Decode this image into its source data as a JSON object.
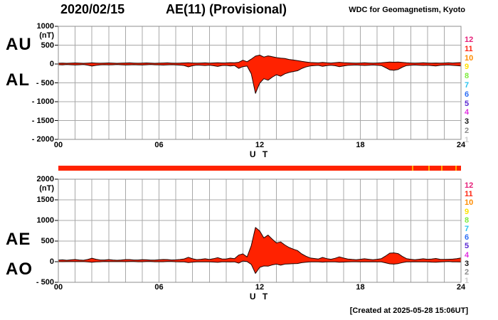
{
  "header": {
    "date": "2020/02/15",
    "title": "AE(11) (Provisional)",
    "source": "WDC for Geomagnetism, Kyoto"
  },
  "footer": {
    "created": "[Created at 2025-05-28 15:06UT]"
  },
  "colors": {
    "fill": "#ff2200",
    "outline": "#1b0400",
    "grid": "#a8a8a8",
    "frame": "#8c8c8c",
    "bar": "#ff2200",
    "bar_gap": "#ffaa00"
  },
  "station_numbers": [
    {
      "label": "12",
      "color": "#e61e78"
    },
    {
      "label": "11",
      "color": "#ff2814"
    },
    {
      "label": "10",
      "color": "#ff8c00"
    },
    {
      "label": "9",
      "color": "#ffe100"
    },
    {
      "label": "8",
      "color": "#7deb3c"
    },
    {
      "label": "7",
      "color": "#28c3f0"
    },
    {
      "label": "6",
      "color": "#2d6ef5"
    },
    {
      "label": "5",
      "color": "#5a28d2"
    },
    {
      "label": "4",
      "color": "#e132e1"
    },
    {
      "label": "3",
      "color": "#141414"
    },
    {
      "label": "2",
      "color": "#8c8c8c"
    },
    {
      "label": "1",
      "color": "#cdcdcd"
    }
  ],
  "availability_bar": {
    "gap_hours": [
      21.1,
      22.1,
      22.85,
      23.7
    ]
  },
  "chart_data": [
    {
      "type": "area",
      "panel": "top",
      "left_labels": [
        "AU",
        "AL"
      ],
      "unit": "(nT)",
      "ylim": [
        -2000,
        1000
      ],
      "ytick_values": [
        1000,
        500,
        0,
        -500,
        -1000,
        -1500,
        -2000
      ],
      "ytick_labels": [
        "1000",
        "500",
        "0",
        "- 500",
        "- 1000",
        "- 1500",
        "- 2000"
      ],
      "xtick_hours": [
        0,
        6,
        12,
        18,
        24
      ],
      "xtick_labels": [
        "00",
        "06",
        "12",
        "18",
        "24"
      ],
      "xlabel": "U T",
      "x_step_hours": 0.25,
      "grid": true,
      "series": [
        {
          "name": "AU",
          "values": [
            20,
            22,
            18,
            24,
            28,
            22,
            18,
            24,
            30,
            24,
            20,
            24,
            28,
            22,
            18,
            22,
            26,
            30,
            24,
            20,
            24,
            28,
            22,
            18,
            22,
            26,
            30,
            24,
            20,
            24,
            28,
            32,
            26,
            22,
            26,
            30,
            24,
            28,
            34,
            28,
            30,
            36,
            32,
            45,
            100,
            60,
            130,
            210,
            235,
            185,
            215,
            195,
            170,
            155,
            145,
            120,
            105,
            90,
            70,
            55,
            40,
            35,
            30,
            42,
            32,
            26,
            36,
            46,
            36,
            30,
            26,
            22,
            26,
            32,
            26,
            22,
            26,
            32,
            42,
            52,
            48,
            52,
            42,
            32,
            26,
            22,
            26,
            32,
            26,
            22,
            26,
            22,
            26,
            32,
            26,
            32,
            38
          ]
        },
        {
          "name": "AL",
          "values": [
            -18,
            -22,
            -16,
            -20,
            -26,
            -20,
            -16,
            -30,
            -55,
            -35,
            -22,
            -18,
            -24,
            -20,
            -16,
            -20,
            -26,
            -22,
            -18,
            -22,
            -26,
            -20,
            -16,
            -20,
            -24,
            -28,
            -22,
            -18,
            -24,
            -30,
            -40,
            -75,
            -45,
            -28,
            -32,
            -40,
            -30,
            -45,
            -65,
            -40,
            -35,
            -50,
            -40,
            -115,
            -70,
            -55,
            -260,
            -780,
            -510,
            -390,
            -430,
            -350,
            -285,
            -325,
            -260,
            -225,
            -200,
            -180,
            -120,
            -80,
            -52,
            -42,
            -36,
            -62,
            -42,
            -32,
            -46,
            -72,
            -52,
            -36,
            -30,
            -26,
            -32,
            -38,
            -32,
            -26,
            -32,
            -42,
            -95,
            -155,
            -165,
            -145,
            -85,
            -42,
            -32,
            -26,
            -32,
            -38,
            -32,
            -42,
            -52,
            -36,
            -30,
            -26,
            -36,
            -42,
            -52
          ]
        }
      ]
    },
    {
      "type": "area",
      "panel": "bottom",
      "left_labels": [
        "AE",
        "AO"
      ],
      "unit": "(nT)",
      "ylim": [
        -500,
        2000
      ],
      "ytick_values": [
        2000,
        1500,
        1000,
        500,
        0,
        -500
      ],
      "ytick_labels": [
        "2000",
        "1500",
        "1000",
        "500",
        "0",
        "- 500"
      ],
      "xtick_hours": [
        0,
        6,
        12,
        18,
        24
      ],
      "xtick_labels": [
        "00",
        "06",
        "12",
        "18",
        "24"
      ],
      "xlabel": "U T",
      "x_step_hours": 0.25,
      "grid": true,
      "series": [
        {
          "name": "AE",
          "values": [
            38,
            44,
            34,
            44,
            54,
            42,
            34,
            54,
            85,
            59,
            42,
            42,
            52,
            42,
            34,
            42,
            52,
            52,
            42,
            42,
            50,
            48,
            38,
            38,
            46,
            54,
            52,
            42,
            44,
            54,
            68,
            107,
            71,
            50,
            58,
            70,
            54,
            73,
            99,
            68,
            65,
            86,
            72,
            160,
            190,
            115,
            390,
            830,
            745,
            575,
            645,
            545,
            455,
            480,
            405,
            345,
            305,
            270,
            190,
            135,
            92,
            77,
            66,
            104,
            74,
            58,
            82,
            118,
            88,
            66,
            56,
            48,
            58,
            70,
            58,
            48,
            58,
            74,
            137,
            207,
            213,
            197,
            127,
            74,
            58,
            48,
            58,
            70,
            58,
            64,
            78,
            58,
            56,
            58,
            62,
            74,
            90
          ]
        },
        {
          "name": "AO",
          "values": [
            1,
            0,
            1,
            2,
            1,
            1,
            1,
            -3,
            -13,
            -6,
            -1,
            3,
            2,
            1,
            1,
            1,
            0,
            4,
            3,
            -1,
            -1,
            4,
            3,
            -1,
            -1,
            -1,
            4,
            3,
            -2,
            -3,
            -6,
            -22,
            -10,
            -3,
            -3,
            -5,
            -3,
            -9,
            -16,
            -6,
            -3,
            -7,
            -4,
            -35,
            15,
            3,
            -65,
            -285,
            -138,
            -103,
            -108,
            -78,
            -58,
            -85,
            -58,
            -53,
            -48,
            -45,
            -25,
            -13,
            -6,
            -4,
            -3,
            -10,
            -5,
            -3,
            -5,
            -13,
            -8,
            -3,
            -2,
            -2,
            -3,
            -3,
            -3,
            -2,
            -3,
            -5,
            -27,
            -52,
            -59,
            -47,
            -22,
            -5,
            -3,
            -2,
            -3,
            -3,
            -3,
            -10,
            -13,
            -7,
            -2,
            3,
            -5,
            -5,
            -7
          ]
        }
      ]
    }
  ]
}
